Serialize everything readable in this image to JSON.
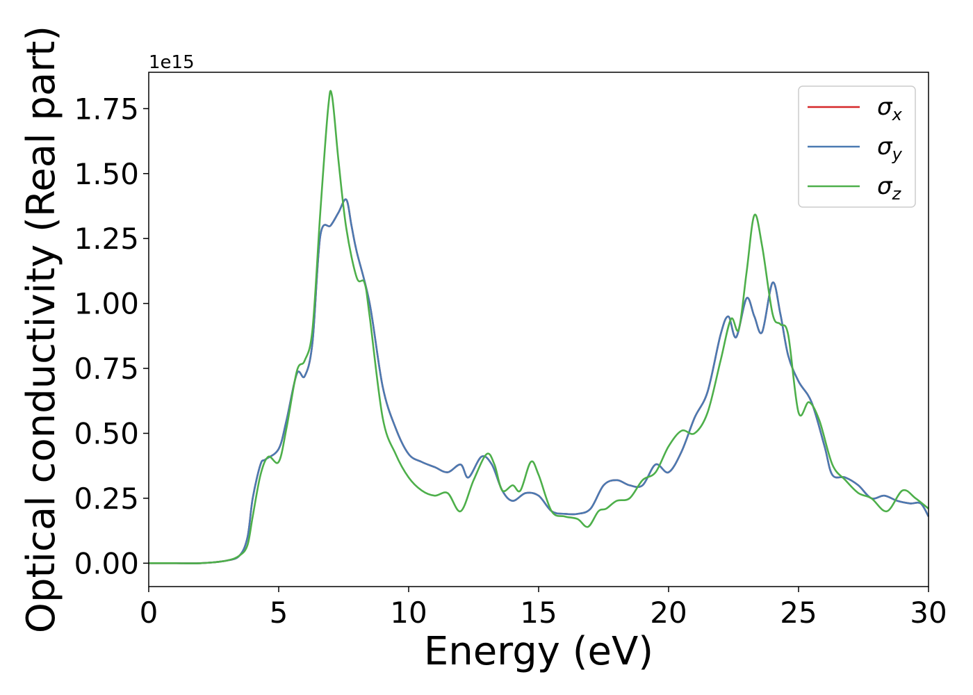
{
  "chart_data": {
    "type": "line",
    "title": "",
    "xlabel": "Energy (eV)",
    "ylabel": "Optical conductivity (Real part)",
    "y_offset_text": "1e15",
    "xlim": [
      0,
      30
    ],
    "ylim": [
      -0.09,
      1.89
    ],
    "xticks": [
      0,
      5,
      10,
      15,
      20,
      25,
      30
    ],
    "xtick_labels": [
      "0",
      "5",
      "10",
      "15",
      "20",
      "25",
      "30"
    ],
    "yticks": [
      0.0,
      0.25,
      0.5,
      0.75,
      1.0,
      1.25,
      1.5,
      1.75
    ],
    "ytick_labels": [
      "0.00",
      "0.25",
      "0.50",
      "0.75",
      "1.00",
      "1.25",
      "1.50",
      "1.75"
    ],
    "grid": false,
    "legend_position": "top-right",
    "series": [
      {
        "name": "σx",
        "symbol": "σ",
        "subscript": "x",
        "color": "#d62728",
        "x": [
          0,
          1,
          2,
          3,
          3.5,
          3.8,
          4.0,
          4.3,
          4.5,
          5.0,
          5.3,
          5.7,
          6.0,
          6.3,
          6.6,
          7.0,
          7.3,
          7.6,
          7.8,
          8.0,
          8.5,
          9.0,
          9.5,
          10.0,
          10.5,
          11.0,
          11.5,
          12.0,
          12.3,
          12.8,
          13.2,
          13.6,
          14.0,
          14.5,
          15.0,
          15.5,
          16.0,
          16.5,
          17.0,
          17.5,
          18.0,
          18.5,
          19.0,
          19.5,
          20.0,
          20.5,
          21.0,
          21.5,
          22.0,
          22.3,
          22.6,
          23.0,
          23.3,
          23.6,
          24.0,
          24.3,
          24.6,
          25.0,
          25.5,
          26.0,
          26.3,
          26.8,
          27.3,
          27.8,
          28.3,
          28.8,
          29.3,
          29.7,
          30.0
        ],
        "y": [
          0.0,
          0.0,
          0.0,
          0.01,
          0.03,
          0.1,
          0.25,
          0.38,
          0.4,
          0.44,
          0.55,
          0.73,
          0.72,
          0.85,
          1.26,
          1.3,
          1.35,
          1.4,
          1.3,
          1.2,
          1.0,
          0.68,
          0.52,
          0.42,
          0.39,
          0.37,
          0.35,
          0.38,
          0.33,
          0.41,
          0.38,
          0.28,
          0.24,
          0.27,
          0.26,
          0.2,
          0.19,
          0.19,
          0.21,
          0.3,
          0.32,
          0.3,
          0.3,
          0.38,
          0.35,
          0.43,
          0.56,
          0.66,
          0.88,
          0.95,
          0.87,
          1.02,
          0.95,
          0.89,
          1.08,
          0.96,
          0.8,
          0.7,
          0.62,
          0.45,
          0.34,
          0.33,
          0.3,
          0.25,
          0.26,
          0.24,
          0.23,
          0.23,
          0.18
        ]
      },
      {
        "name": "σy",
        "symbol": "σ",
        "subscript": "y",
        "color": "#4a7ab2",
        "x": [
          0,
          1,
          2,
          3,
          3.5,
          3.8,
          4.0,
          4.3,
          4.5,
          5.0,
          5.3,
          5.7,
          6.0,
          6.3,
          6.6,
          7.0,
          7.3,
          7.6,
          7.8,
          8.0,
          8.5,
          9.0,
          9.5,
          10.0,
          10.5,
          11.0,
          11.5,
          12.0,
          12.3,
          12.8,
          13.2,
          13.6,
          14.0,
          14.5,
          15.0,
          15.5,
          16.0,
          16.5,
          17.0,
          17.5,
          18.0,
          18.5,
          19.0,
          19.5,
          20.0,
          20.5,
          21.0,
          21.5,
          22.0,
          22.3,
          22.6,
          23.0,
          23.3,
          23.6,
          24.0,
          24.3,
          24.6,
          25.0,
          25.5,
          26.0,
          26.3,
          26.8,
          27.3,
          27.8,
          28.3,
          28.8,
          29.3,
          29.7,
          30.0
        ],
        "y": [
          0.0,
          0.0,
          0.0,
          0.01,
          0.03,
          0.1,
          0.25,
          0.38,
          0.4,
          0.44,
          0.55,
          0.73,
          0.72,
          0.85,
          1.26,
          1.3,
          1.35,
          1.4,
          1.3,
          1.2,
          1.0,
          0.68,
          0.52,
          0.42,
          0.39,
          0.37,
          0.35,
          0.38,
          0.33,
          0.41,
          0.38,
          0.28,
          0.24,
          0.27,
          0.26,
          0.2,
          0.19,
          0.19,
          0.21,
          0.3,
          0.32,
          0.3,
          0.3,
          0.38,
          0.35,
          0.43,
          0.56,
          0.66,
          0.88,
          0.95,
          0.87,
          1.02,
          0.95,
          0.89,
          1.08,
          0.96,
          0.8,
          0.7,
          0.62,
          0.45,
          0.34,
          0.33,
          0.3,
          0.25,
          0.26,
          0.24,
          0.23,
          0.23,
          0.18
        ]
      },
      {
        "name": "σz",
        "symbol": "σ",
        "subscript": "z",
        "color": "#4daf4a",
        "x": [
          0,
          1,
          2,
          3,
          3.5,
          3.8,
          4.0,
          4.3,
          4.6,
          5.0,
          5.3,
          5.7,
          6.0,
          6.3,
          6.6,
          6.9,
          7.05,
          7.3,
          7.6,
          8.0,
          8.3,
          8.5,
          9.0,
          9.5,
          10.0,
          10.5,
          11.0,
          11.5,
          12.0,
          12.5,
          13.0,
          13.3,
          13.6,
          14.0,
          14.3,
          14.7,
          15.0,
          15.5,
          16.0,
          16.5,
          16.9,
          17.3,
          17.6,
          18.0,
          18.5,
          19.0,
          19.5,
          20.0,
          20.5,
          21.0,
          21.5,
          22.0,
          22.4,
          22.7,
          23.0,
          23.3,
          23.6,
          24.0,
          24.3,
          24.6,
          25.0,
          25.4,
          25.8,
          26.3,
          26.8,
          27.3,
          27.8,
          28.4,
          29.0,
          29.5,
          30.0
        ],
        "y": [
          0.0,
          0.0,
          0.0,
          0.01,
          0.03,
          0.07,
          0.18,
          0.34,
          0.41,
          0.39,
          0.52,
          0.74,
          0.78,
          0.9,
          1.35,
          1.75,
          1.8,
          1.55,
          1.29,
          1.1,
          1.08,
          0.95,
          0.56,
          0.42,
          0.33,
          0.28,
          0.26,
          0.27,
          0.2,
          0.32,
          0.42,
          0.38,
          0.28,
          0.3,
          0.28,
          0.39,
          0.34,
          0.2,
          0.18,
          0.17,
          0.14,
          0.2,
          0.21,
          0.24,
          0.25,
          0.32,
          0.35,
          0.45,
          0.51,
          0.5,
          0.58,
          0.78,
          0.94,
          0.9,
          1.12,
          1.34,
          1.22,
          0.96,
          0.92,
          0.88,
          0.58,
          0.62,
          0.55,
          0.38,
          0.32,
          0.27,
          0.25,
          0.2,
          0.28,
          0.25,
          0.21
        ]
      }
    ]
  }
}
